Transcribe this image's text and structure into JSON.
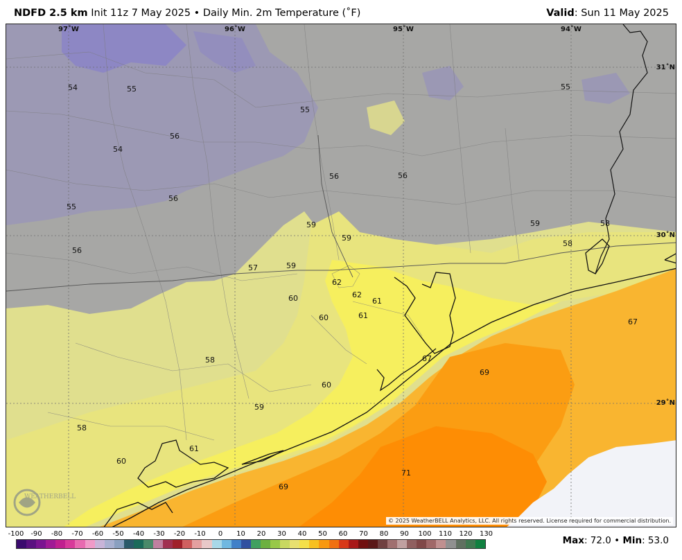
{
  "header": {
    "model": "NDFD 2.5 km",
    "init": "Init 11z 7 May 2025",
    "bullet": "•",
    "product": "Daily Min. 2m Temperature (˚F)",
    "valid_label": "Valid",
    "valid_value": ": Sun 11 May 2025"
  },
  "map": {
    "longitude_labels": [
      "97˚W",
      "96˚W",
      "95˚W",
      "94˚W"
    ],
    "latitude_labels": [
      "31˚N",
      "30˚N",
      "29˚N"
    ],
    "temperature_labels": [
      "54",
      "55",
      "55",
      "55",
      "54",
      "56",
      "56",
      "56",
      "56",
      "55",
      "56",
      "59",
      "59",
      "59",
      "58",
      "58",
      "59",
      "57",
      "62",
      "62",
      "61",
      "60",
      "60",
      "61",
      "67",
      "58",
      "69",
      "67",
      "60",
      "59",
      "58",
      "61",
      "60",
      "71",
      "69"
    ],
    "credit": "© 2025 WeatherBELL Analytics, LLC. All rights reserved. License required for commercial distribution.",
    "logo_text": "WeatherBELL"
  },
  "legend": {
    "ticks": [
      "-100",
      "-90",
      "-80",
      "-70",
      "-60",
      "-50",
      "-40",
      "-30",
      "-20",
      "-10",
      "0",
      "10",
      "20",
      "30",
      "40",
      "50",
      "60",
      "70",
      "80",
      "90",
      "100",
      "110",
      "120",
      "130"
    ],
    "colors": [
      "#3a0a6e",
      "#5a1080",
      "#7a1490",
      "#a01a95",
      "#c0208f",
      "#d83a9a",
      "#e86ab0",
      "#f09ac8",
      "#c8b4d8",
      "#a8b0d0",
      "#8aa0c0",
      "#2a5a6a",
      "#1a6a5a",
      "#4a8a6a",
      "#c080a0",
      "#a03050",
      "#a0202a",
      "#d06060",
      "#e4a0a0",
      "#e8c8c8",
      "#a8d8e8",
      "#70b8e0",
      "#4080c8",
      "#3050a0",
      "#40a060",
      "#6cb040",
      "#98c848",
      "#c8d860",
      "#e8e070",
      "#f4e04a",
      "#f8c020",
      "#f89810",
      "#f07010",
      "#d83818",
      "#a81818",
      "#701010",
      "#5a1818",
      "#704040",
      "#a07070",
      "#c0a0a0",
      "#906060",
      "#804848",
      "#a06868",
      "#c09090",
      "#909090",
      "#607060",
      "#407850",
      "#108040"
    ],
    "stats_max_label": "Max",
    "stats_max_value": ": 72.0",
    "stats_sep": "•",
    "stats_min_label": "Min",
    "stats_min_value": ": 53.0"
  }
}
